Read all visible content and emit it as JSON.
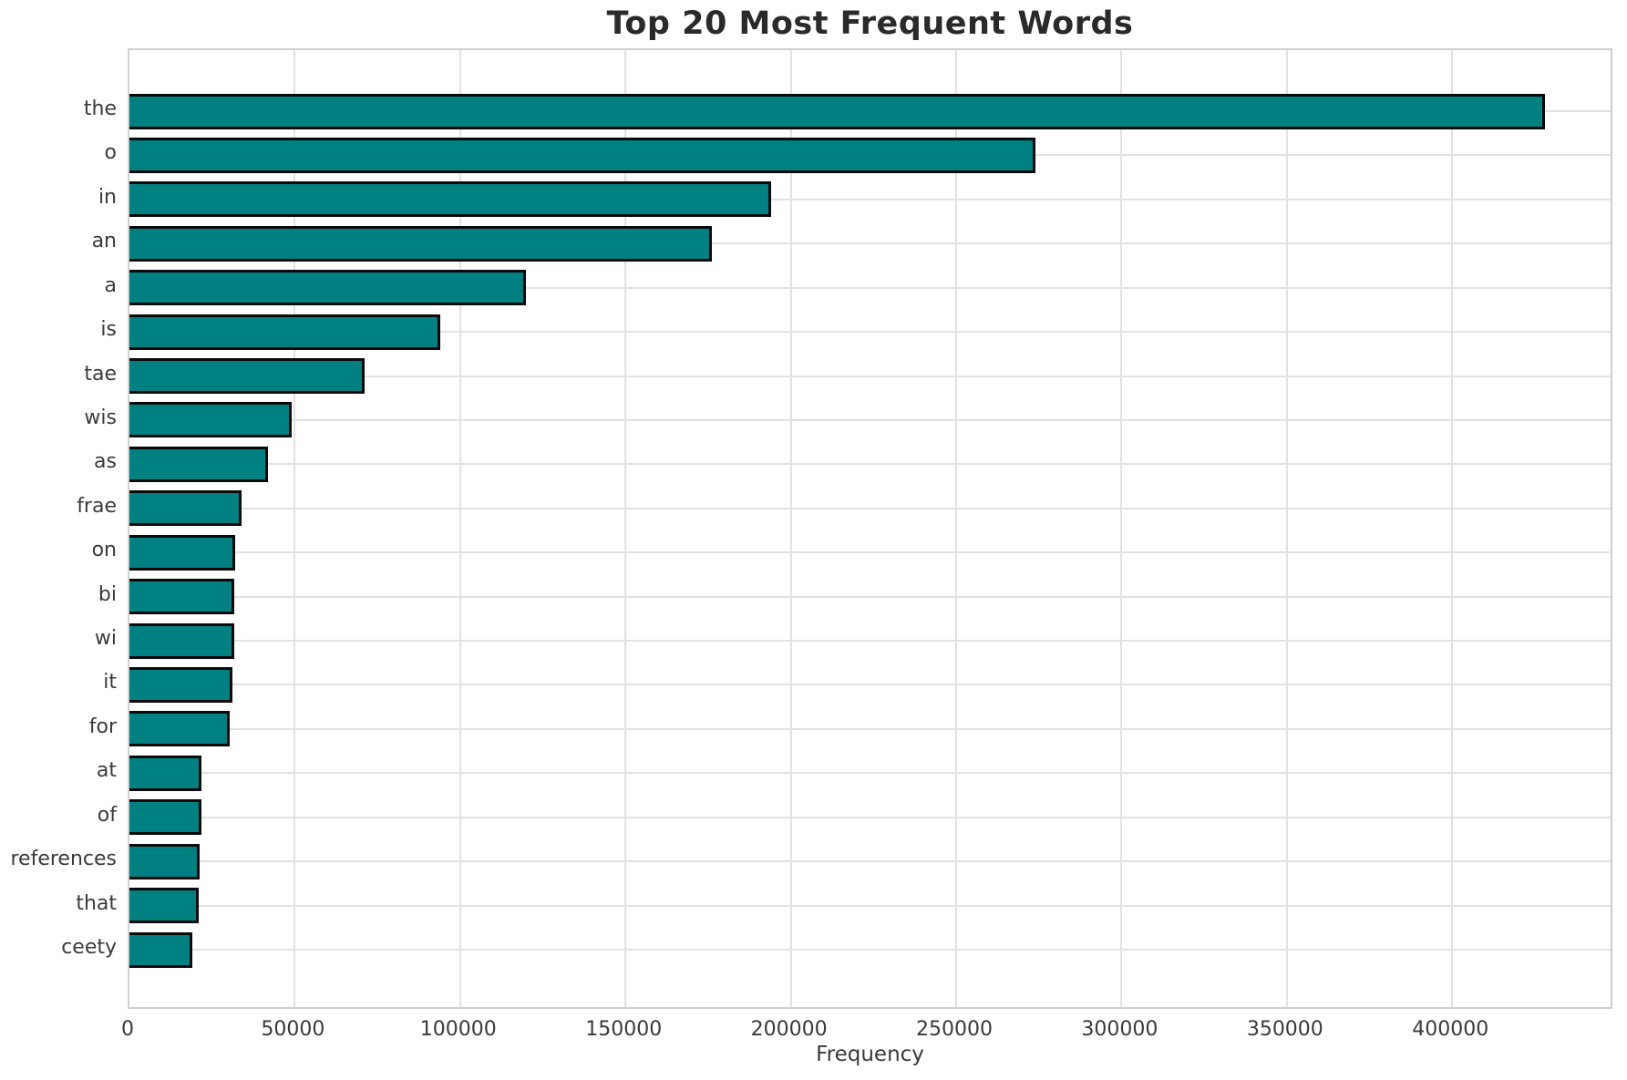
{
  "chart_data": {
    "type": "bar",
    "orientation": "horizontal",
    "title": "Top 20 Most Frequent Words",
    "xlabel": "Frequency",
    "ylabel": "",
    "categories": [
      "the",
      "o",
      "in",
      "an",
      "a",
      "is",
      "tae",
      "wis",
      "as",
      "frae",
      "on",
      "bi",
      "wi",
      "it",
      "for",
      "at",
      "of",
      "references",
      "that",
      "ceety"
    ],
    "values": [
      428000,
      274000,
      194000,
      176000,
      120000,
      94000,
      71000,
      49000,
      42000,
      34000,
      32000,
      31800,
      31600,
      31200,
      30400,
      21900,
      21800,
      21300,
      21000,
      19000
    ],
    "xticks": [
      0,
      50000,
      100000,
      150000,
      200000,
      250000,
      300000,
      350000,
      400000
    ],
    "xtick_labels": [
      "0",
      "50000",
      "100000",
      "150000",
      "200000",
      "250000",
      "300000",
      "350000",
      "400000"
    ],
    "xlim": [
      0,
      449000
    ],
    "grid": true,
    "legend": false,
    "bar_color": "#008080",
    "bar_edge_color": "#0a0a0a",
    "grid_color": "#e2e2e2",
    "text_color": "#3a3a3a"
  }
}
